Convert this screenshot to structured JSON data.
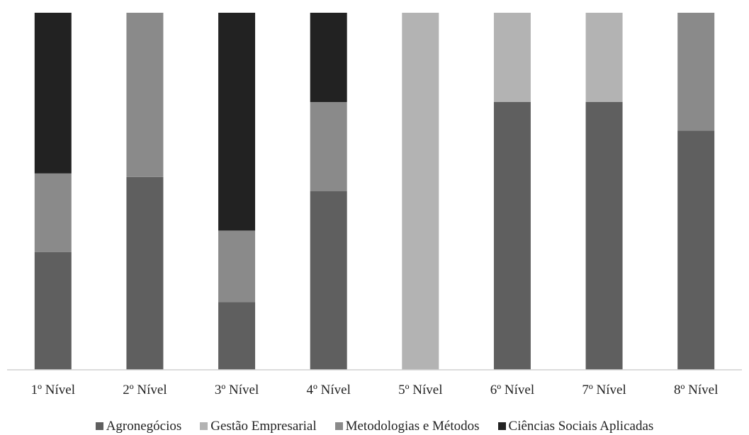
{
  "chart_data": {
    "type": "bar",
    "stacked": true,
    "normalized": true,
    "categories": [
      "1º Nível",
      "2º Nível",
      "3º Nível",
      "4º Nível",
      "5º Nível",
      "6º Nível",
      "7º Nível",
      "8º Nível"
    ],
    "series": [
      {
        "name": "Agronegócios",
        "color": "#5f5f5f",
        "values": [
          33,
          54,
          19,
          50,
          0,
          75,
          75,
          67
        ]
      },
      {
        "name": "Gestão Empresarial",
        "color": "#b3b3b3",
        "values": [
          0,
          0,
          0,
          0,
          100,
          25,
          25,
          0
        ]
      },
      {
        "name": "Metodologias e Métodos",
        "color": "#8a8a8a",
        "values": [
          22,
          46,
          20,
          25,
          0,
          0,
          0,
          33
        ]
      },
      {
        "name": "Ciências Sociais Aplicadas",
        "color": "#222222",
        "values": [
          45,
          0,
          61,
          25,
          0,
          0,
          0,
          0
        ]
      }
    ],
    "ylim": [
      0,
      100
    ],
    "grid": false,
    "legend_position": "bottom",
    "title": "",
    "xlabel": "",
    "ylabel": ""
  }
}
